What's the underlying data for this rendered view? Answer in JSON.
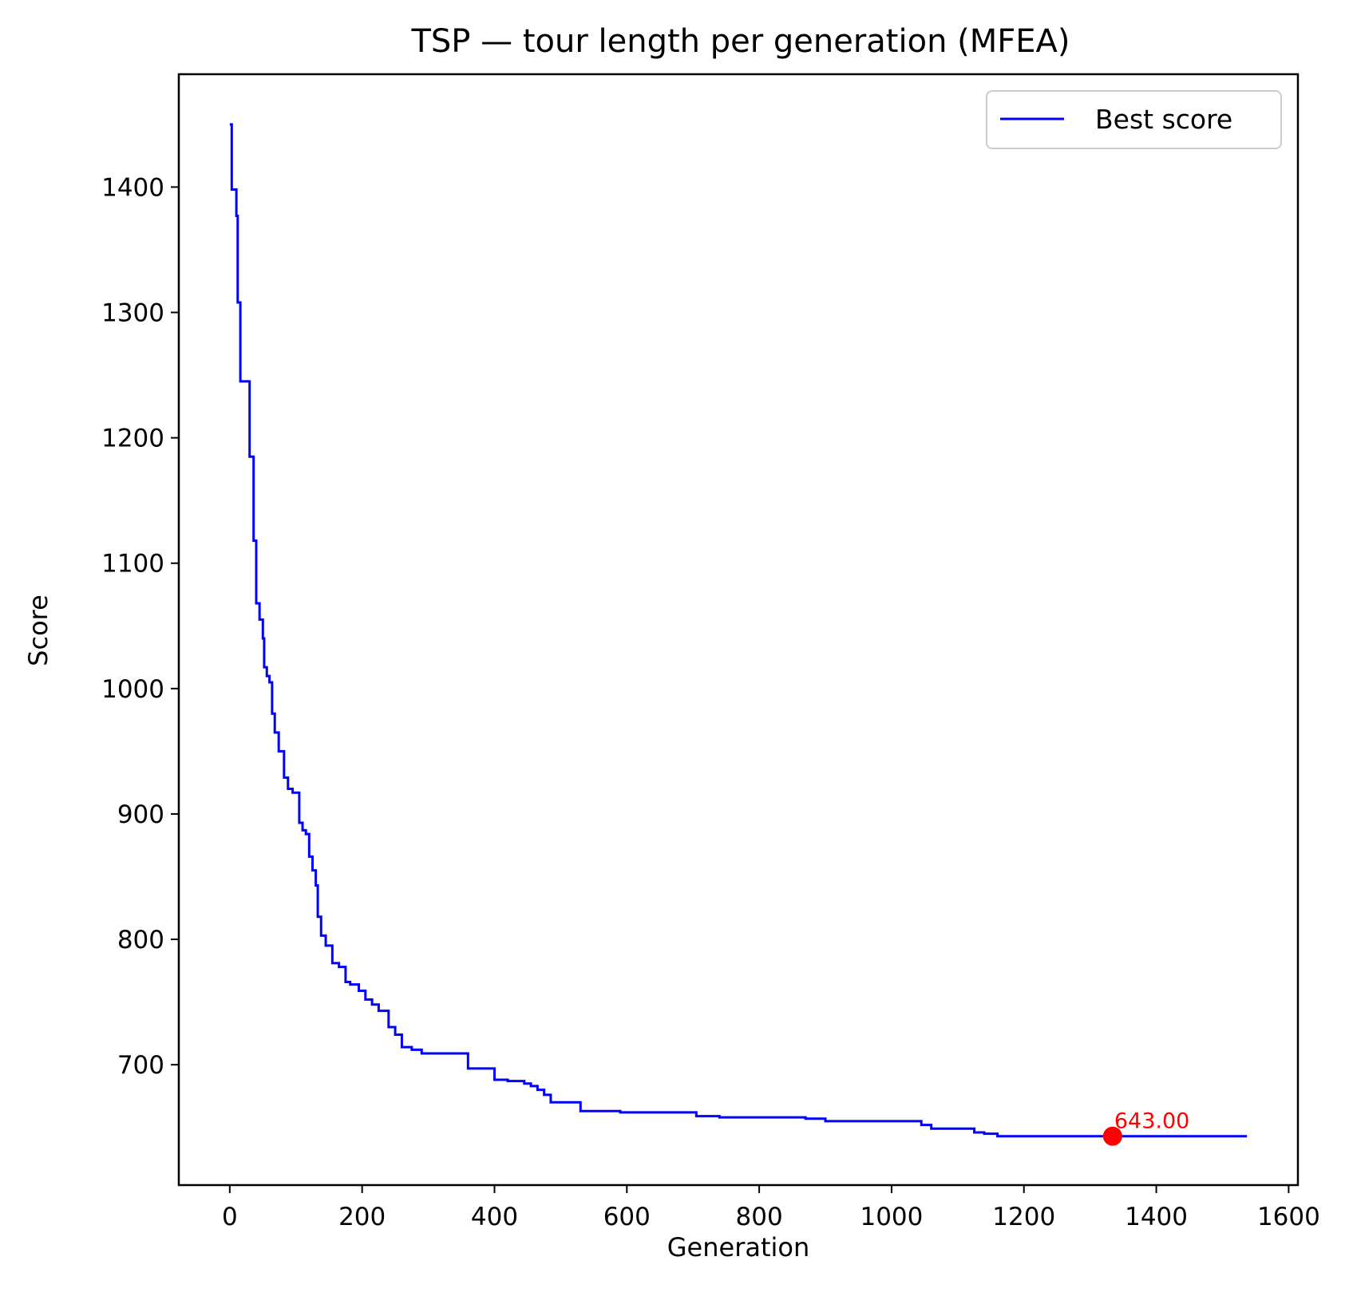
{
  "chart_data": {
    "type": "line",
    "title": "TSP — tour length per generation (MFEA)",
    "xlabel": "Generation",
    "ylabel": "Score",
    "xlim": [
      -77,
      1614
    ],
    "ylim": [
      604,
      1490
    ],
    "xticks": [
      0,
      200,
      400,
      600,
      800,
      1000,
      1200,
      1400,
      1600
    ],
    "yticks": [
      700,
      800,
      900,
      1000,
      1100,
      1200,
      1300,
      1400
    ],
    "grid": false,
    "legend": {
      "position": "top-right",
      "entries": [
        {
          "label": "Best score",
          "color": "#0000ff"
        }
      ]
    },
    "series": [
      {
        "name": "Best score",
        "color": "#0000ff",
        "step": "post",
        "x": [
          0,
          3,
          10,
          12,
          16,
          30,
          36,
          40,
          45,
          50,
          52,
          56,
          60,
          64,
          68,
          74,
          82,
          88,
          95,
          105,
          110,
          115,
          120,
          125,
          130,
          133,
          138,
          145,
          155,
          165,
          175,
          182,
          195,
          205,
          215,
          225,
          240,
          250,
          260,
          275,
          290,
          360,
          400,
          420,
          445,
          455,
          465,
          475,
          485,
          530,
          590,
          705,
          740,
          870,
          900,
          1045,
          1060,
          1125,
          1140,
          1160,
          1334,
          1537
        ],
        "y": [
          1450,
          1398,
          1377,
          1308,
          1245,
          1185,
          1118,
          1068,
          1055,
          1040,
          1017,
          1010,
          1005,
          980,
          965,
          950,
          929,
          920,
          917,
          893,
          887,
          884,
          866,
          855,
          843,
          818,
          803,
          795,
          781,
          778,
          766,
          764,
          759,
          752,
          748,
          743,
          730,
          724,
          714,
          712,
          709,
          697,
          688,
          687,
          685,
          683,
          680,
          676,
          670,
          663,
          662,
          659,
          658,
          657,
          655,
          652,
          649,
          646,
          645,
          643,
          643,
          643
        ]
      }
    ],
    "annotations": [
      {
        "x": 1334,
        "y": 643,
        "text": "643.00",
        "color": "#ff0000"
      }
    ]
  }
}
